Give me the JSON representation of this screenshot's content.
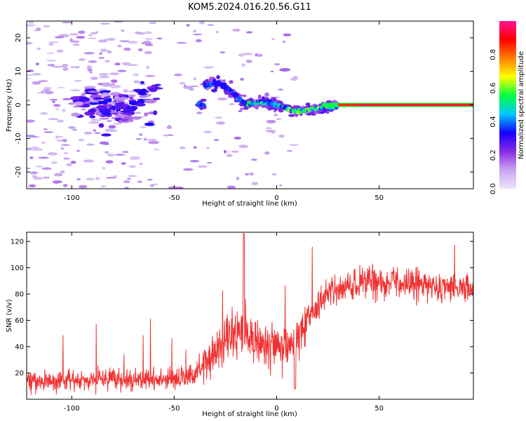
{
  "title": "KOM5.2024.016.20.56.G11",
  "chart_data": [
    {
      "type": "heatmap",
      "xlabel": "Height of straight line (km)",
      "ylabel": "Frequency (Hz)",
      "xlim": [
        -122,
        96
      ],
      "ylim": [
        -25,
        25
      ],
      "xticks": [
        -100,
        -50,
        0,
        50
      ],
      "yticks": [
        -20,
        -10,
        0,
        10,
        20
      ],
      "colorbar": {
        "label": "Normalized spectral amplitude",
        "range": [
          0,
          1
        ],
        "ticks": [
          0.0,
          0.2,
          0.4,
          0.6,
          0.8
        ],
        "colormap": [
          "#ece5fb",
          "#c9a6ef",
          "#8a2be2",
          "#1400ff",
          "#00c8ff",
          "#00ff40",
          "#ffff00",
          "#ff8000",
          "#ff0000",
          "#ff1493"
        ]
      },
      "ridge": {
        "description_points": [
          {
            "x": -35,
            "y": 6
          },
          {
            "x": -28,
            "y": 6.5
          },
          {
            "x": -20,
            "y": 3
          },
          {
            "x": -15,
            "y": 0
          },
          {
            "x": -8,
            "y": 1
          },
          {
            "x": 0,
            "y": 0
          },
          {
            "x": 10,
            "y": -2
          },
          {
            "x": 20,
            "y": -1
          },
          {
            "x": 35,
            "y": 0
          },
          {
            "x": 96,
            "y": 0
          }
        ]
      }
    },
    {
      "type": "line",
      "xlabel": "Height of straight line (km)",
      "ylabel": "SNR (v/v)",
      "xlim": [
        -122,
        96
      ],
      "ylim": [
        0,
        127
      ],
      "xticks": [
        -100,
        -50,
        0,
        50
      ],
      "yticks": [
        20,
        40,
        60,
        80,
        100,
        120
      ],
      "series": [
        {
          "color": "#f03232",
          "envelope": [
            {
              "x": -122,
              "y": 14
            },
            {
              "x": -80,
              "y": 15
            },
            {
              "x": -50,
              "y": 15
            },
            {
              "x": -40,
              "y": 18
            },
            {
              "x": -33,
              "y": 30
            },
            {
              "x": -25,
              "y": 45
            },
            {
              "x": -18,
              "y": 50
            },
            {
              "x": -10,
              "y": 45
            },
            {
              "x": 0,
              "y": 40
            },
            {
              "x": 8,
              "y": 40
            },
            {
              "x": 15,
              "y": 60
            },
            {
              "x": 25,
              "y": 80
            },
            {
              "x": 40,
              "y": 88
            },
            {
              "x": 50,
              "y": 90
            },
            {
              "x": 70,
              "y": 87
            },
            {
              "x": 96,
              "y": 83
            }
          ]
        }
      ]
    }
  ]
}
